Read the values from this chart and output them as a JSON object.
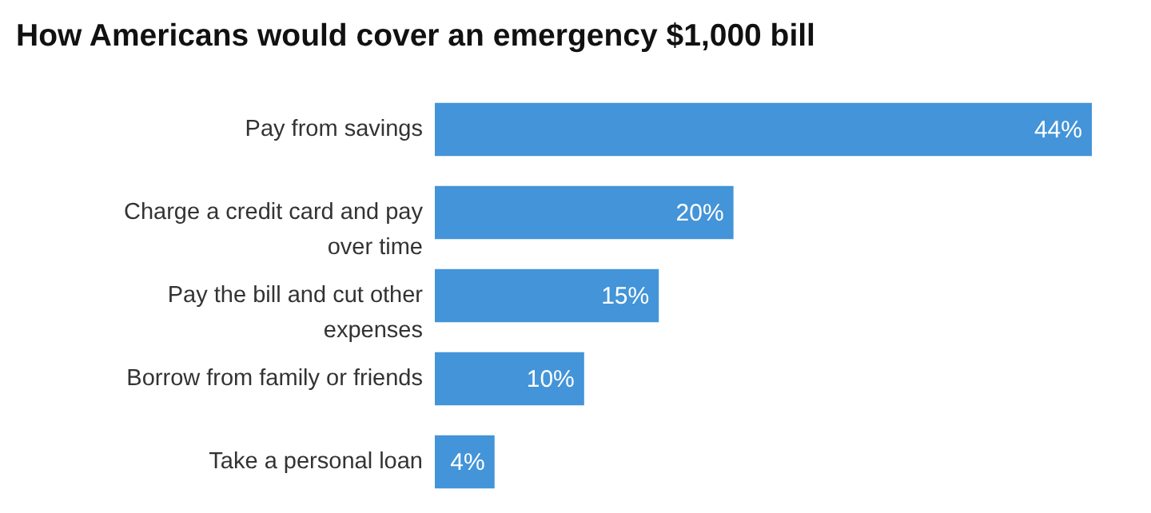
{
  "chart_data": {
    "type": "bar",
    "orientation": "horizontal",
    "title": "How Americans would cover an emergency $1,000 bill",
    "categories": [
      "Pay from savings",
      "Charge a credit card and pay over time",
      "Pay the bill and cut other expenses",
      "Borrow from family or friends",
      "Take a personal loan"
    ],
    "values": [
      44,
      20,
      15,
      10,
      4
    ],
    "value_labels": [
      "44%",
      "20%",
      "15%",
      "10%",
      "4%"
    ],
    "color": "#4394d8"
  }
}
